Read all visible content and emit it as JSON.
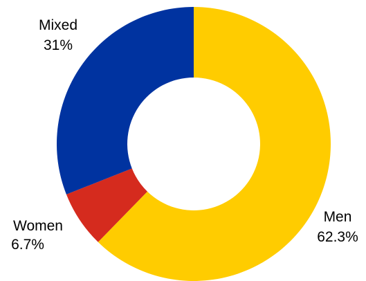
{
  "chart_data": {
    "type": "pie",
    "donut": true,
    "categories": [
      "Men",
      "Women",
      "Mixed"
    ],
    "values": [
      62.3,
      6.7,
      31
    ],
    "labels": [
      "62.3%",
      "6.7%",
      "31%"
    ],
    "colors": [
      "#FFCC00",
      "#D52B1E",
      "#0033A0"
    ],
    "start_angle": "top, clockwise"
  }
}
